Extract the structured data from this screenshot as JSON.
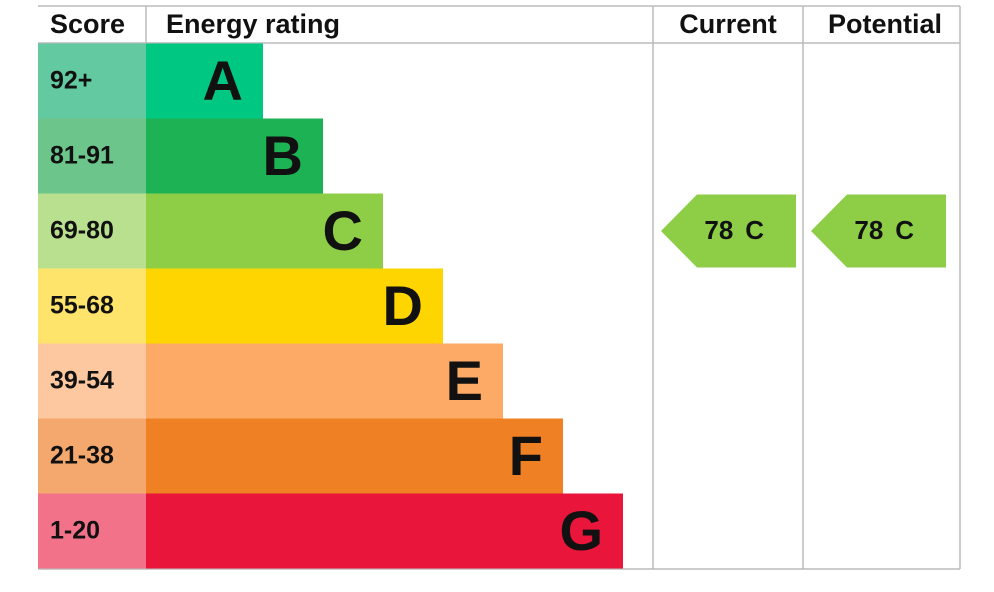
{
  "header": {
    "score": "Score",
    "rating": "Energy rating",
    "current": "Current",
    "potential": "Potential"
  },
  "bands": [
    {
      "score": "92+",
      "letter": "A",
      "color": "#00c781",
      "light": "#63c9a0"
    },
    {
      "score": "81-91",
      "letter": "B",
      "color": "#1db355",
      "light": "#6cc58a"
    },
    {
      "score": "69-80",
      "letter": "C",
      "color": "#8dce46",
      "light": "#b8e08f"
    },
    {
      "score": "55-68",
      "letter": "D",
      "color": "#ffd500",
      "light": "#ffe46b"
    },
    {
      "score": "39-54",
      "letter": "E",
      "color": "#fcaa65",
      "light": "#fdc79f"
    },
    {
      "score": "21-38",
      "letter": "F",
      "color": "#ef8023",
      "light": "#f4a86d"
    },
    {
      "score": "1-20",
      "letter": "G",
      "color": "#e9153b",
      "light": "#f27389"
    }
  ],
  "current": {
    "score": 78,
    "rating": "C"
  },
  "potential": {
    "score": 78,
    "rating": "C"
  }
}
